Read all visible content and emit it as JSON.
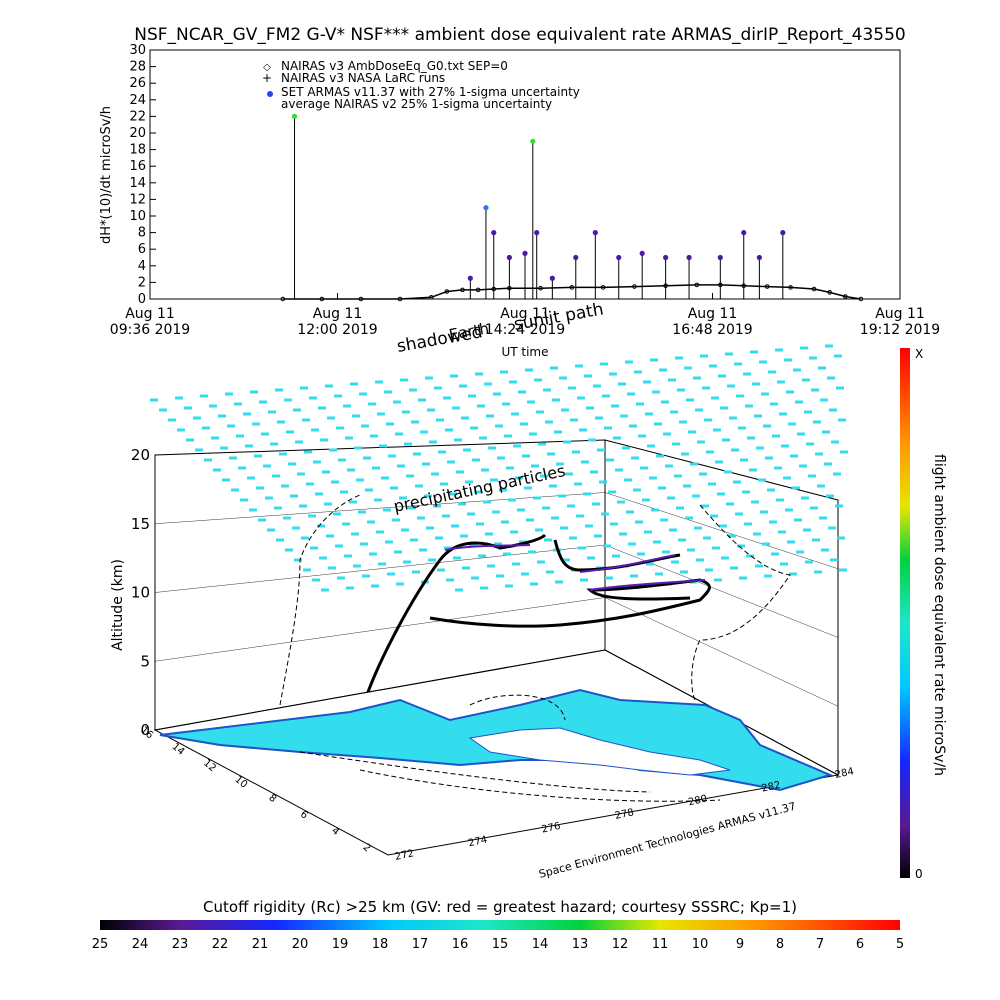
{
  "title": "NSF_NCAR_GV_FM2 G-V* NSF*** ambient dose equivalent rate ARMAS_dirIP_Report_43550",
  "top_chart": {
    "ylabel": "dH*(10)/dt microSv/h",
    "xlabel": "UT time",
    "yticks": [
      "0",
      "2",
      "4",
      "6",
      "8",
      "10",
      "12",
      "14",
      "16",
      "18",
      "20",
      "22",
      "24",
      "26",
      "28",
      "30"
    ],
    "xticks": [
      {
        "line1": "Aug 11",
        "line2": "09:36 2019"
      },
      {
        "line1": "Aug 11",
        "line2": "12:00 2019"
      },
      {
        "line1": "Aug 11",
        "line2": "14:24 2019"
      },
      {
        "line1": "Aug 11",
        "line2": "16:48 2019"
      },
      {
        "line1": "Aug 11",
        "line2": "19:12 2019"
      }
    ],
    "legend": [
      {
        "symbol": "◇",
        "label": "NAIRAS v3 AmbDoseEq_G0.txt SEP=0"
      },
      {
        "symbol": "+",
        "label": "NAIRAS v3 NASA LaRC runs"
      },
      {
        "symbol": "●",
        "label": "SET ARMAS v11.37 with 27% 1-sigma uncertainty"
      },
      {
        "symbol": "",
        "label": "average NAIRAS v2 25% 1-sigma uncertainty"
      }
    ]
  },
  "annotations": {
    "shadowed": "shadowed",
    "earth": "Earth",
    "sunlit": "sunlit path",
    "precipitating": "precipitating particles",
    "credit": "Space Environment Technologies ARMAS v11.37"
  },
  "perspective": {
    "zlabel": "Altitude (km)",
    "zticks": [
      "0",
      "5",
      "10",
      "15",
      "20"
    ],
    "xticks": [
      "272",
      "274",
      "276",
      "278",
      "280",
      "282",
      "284"
    ],
    "yticks": [
      "2",
      "4",
      "6",
      "8",
      "10",
      "12",
      "14",
      "16"
    ]
  },
  "colorbar_right": {
    "label": "flight ambient dose equivalent rate microSv/h",
    "top": "X",
    "bottom": "0"
  },
  "colorbar_bottom": {
    "label": "Cutoff rigidity (Rc) >25 km (GV: red = greatest hazard; courtesy SSSRC; Kp=1)",
    "ticks": [
      "25",
      "24",
      "23",
      "22",
      "21",
      "20",
      "19",
      "18",
      "17",
      "16",
      "15",
      "14",
      "13",
      "12",
      "11",
      "10",
      "9",
      "8",
      "7",
      "6",
      "5"
    ]
  },
  "chart_data": {
    "type": "line",
    "title": "NSF_NCAR_GV_FM2 G-V* NSF*** ambient dose equivalent rate ARMAS_dirIP_Report_43550",
    "xlabel": "UT time",
    "ylabel": "dH*(10)/dt microSv/h",
    "ylim": [
      0,
      30
    ],
    "xlim_hours": [
      9.6,
      19.2
    ],
    "series": [
      {
        "name": "NAIRAS v3 AmbDoseEq_G0.txt SEP=0",
        "x_hours": [
          11.3,
          11.8,
          12.3,
          12.8,
          13.2,
          13.4,
          13.6,
          13.8,
          14.0,
          14.2,
          14.6,
          15.0,
          15.4,
          15.8,
          16.2,
          16.6,
          16.9,
          17.2,
          17.5,
          17.8,
          18.1,
          18.3,
          18.5,
          18.7
        ],
        "values": [
          0,
          0,
          0,
          0,
          0.2,
          0.9,
          1.1,
          1.1,
          1.2,
          1.3,
          1.3,
          1.4,
          1.4,
          1.5,
          1.6,
          1.7,
          1.7,
          1.6,
          1.5,
          1.4,
          1.2,
          0.8,
          0.3,
          0
        ]
      },
      {
        "name": "SET ARMAS v11.37 with 27% 1-sigma uncertainty",
        "x_hours": [
          11.45,
          13.7,
          13.9,
          14.0,
          14.2,
          14.4,
          14.5,
          14.55,
          14.75,
          15.05,
          15.3,
          15.6,
          15.9,
          16.2,
          16.5,
          16.9,
          17.2,
          17.4,
          17.7
        ],
        "values": [
          22,
          2.5,
          11,
          8,
          5,
          5.5,
          19,
          8,
          2.5,
          5,
          8,
          5,
          5.5,
          5,
          5,
          5,
          8,
          5,
          8
        ]
      }
    ],
    "perspective_axes": {
      "zlabel": "Altitude (km)",
      "zlim": [
        0,
        20
      ],
      "xlim": [
        272,
        284
      ],
      "ylim": [
        2,
        16
      ]
    },
    "colorbar_bottom_range": [
      25,
      5
    ]
  }
}
